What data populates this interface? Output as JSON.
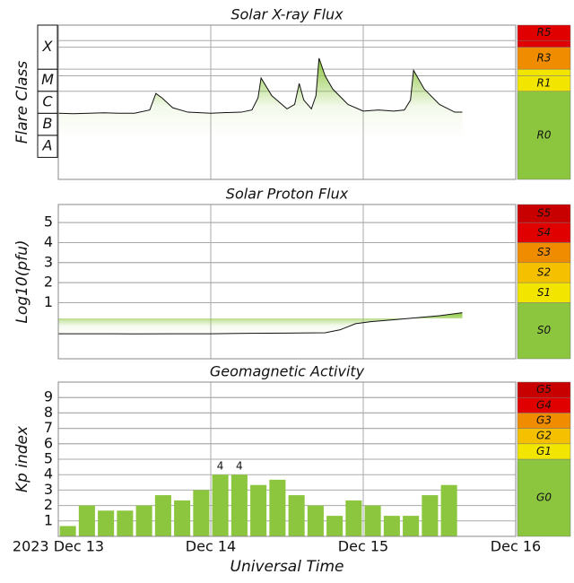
{
  "chart_data": [
    {
      "type": "line",
      "title": "Solar X-ray Flux",
      "ylabel": "Flare Class",
      "color": "#111111",
      "fill": "#8cc63f",
      "x": [
        0,
        0.1,
        0.2,
        0.3,
        0.4,
        0.5,
        0.6,
        0.64,
        0.68,
        0.75,
        0.85,
        1.0,
        1.1,
        1.2,
        1.27,
        1.31,
        1.33,
        1.4,
        1.5,
        1.55,
        1.58,
        1.61,
        1.66,
        1.69,
        1.71,
        1.75,
        1.8,
        1.9,
        2.0,
        2.1,
        2.2,
        2.27,
        2.31,
        2.33,
        2.4,
        2.5,
        2.6,
        2.65
      ],
      "values": [
        -6.0,
        -6.02,
        -6.0,
        -5.98,
        -6.0,
        -6.0,
        -5.85,
        -5.1,
        -5.3,
        -5.75,
        -5.95,
        -6.0,
        -5.97,
        -5.95,
        -5.85,
        -5.3,
        -4.4,
        -5.2,
        -5.8,
        -5.6,
        -4.65,
        -5.4,
        -5.8,
        -5.2,
        -3.5,
        -4.3,
        -4.9,
        -5.6,
        -5.9,
        -5.85,
        -5.9,
        -5.85,
        -5.4,
        -4.05,
        -4.9,
        -5.6,
        -5.95,
        -5.95
      ],
      "ylim": [
        -9,
        -2
      ],
      "yticks": [
        {
          "value": -8,
          "label": "A"
        },
        {
          "value": -7,
          "label": "B"
        },
        {
          "value": -6,
          "label": "C"
        },
        {
          "value": -5,
          "label": "M"
        },
        {
          "value": -4,
          "label": "X"
        }
      ],
      "scale": [
        {
          "label": "R0",
          "from": -9,
          "to": -5,
          "color": "#8cc63f"
        },
        {
          "label": "R1",
          "from": -5,
          "to": -4.3,
          "color": "#f2e600"
        },
        {
          "label": null,
          "from": -4.3,
          "to": -4,
          "color": "#f2e600"
        },
        {
          "label": "R3",
          "from": -4,
          "to": -3,
          "color": "#f08c00"
        },
        {
          "label": null,
          "from": -3,
          "to": -2.7,
          "color": "#e00000"
        },
        {
          "label": "R5",
          "from": -2.7,
          "to": -2,
          "color": "#e00000"
        }
      ]
    },
    {
      "type": "line",
      "title": "Solar Proton Flux",
      "ylabel": "Log10(pfu)",
      "color": "#111111",
      "fill": "#8cc63f",
      "x": [
        0,
        0.25,
        0.5,
        0.75,
        1.0,
        1.25,
        1.5,
        1.75,
        1.85,
        1.95,
        2.05,
        2.2,
        2.35,
        2.5,
        2.65
      ],
      "values": [
        -0.55,
        -0.55,
        -0.56,
        -0.55,
        -0.55,
        -0.53,
        -0.52,
        -0.5,
        -0.35,
        -0.05,
        0.05,
        0.15,
        0.25,
        0.35,
        0.5
      ],
      "ylim": [
        -1.8,
        5.9
      ],
      "yticks": [
        1,
        2,
        3,
        4,
        5
      ],
      "scale": [
        {
          "label": "S0",
          "from": -1.8,
          "to": 1,
          "color": "#8cc63f"
        },
        {
          "label": "S1",
          "from": 1,
          "to": 2,
          "color": "#f2e600"
        },
        {
          "label": "S2",
          "from": 2,
          "to": 3,
          "color": "#f5c000"
        },
        {
          "label": "S3",
          "from": 3,
          "to": 4,
          "color": "#f08c00"
        },
        {
          "label": "S4",
          "from": 4,
          "to": 5,
          "color": "#e00000"
        },
        {
          "label": "S5",
          "from": 5,
          "to": 5.9,
          "color": "#c80000"
        }
      ]
    },
    {
      "type": "bar",
      "title": "Geomagnetic Activity",
      "ylabel": "Kp index",
      "color": "#8cc63f",
      "x": [
        0.0625,
        0.1875,
        0.3125,
        0.4375,
        0.5625,
        0.6875,
        0.8125,
        0.9375,
        1.0625,
        1.1875,
        1.3125,
        1.4375,
        1.5625,
        1.6875,
        1.8125,
        1.9375,
        2.0625,
        2.1875,
        2.3125,
        2.4375,
        2.5625
      ],
      "values": [
        0.67,
        2.0,
        1.67,
        1.67,
        2.0,
        2.67,
        2.33,
        3.0,
        4.0,
        4.0,
        3.33,
        3.67,
        2.67,
        2.0,
        1.33,
        2.33,
        2.0,
        1.33,
        1.33,
        2.67,
        3.33
      ],
      "value_labels": [
        null,
        null,
        null,
        null,
        null,
        null,
        null,
        null,
        "4",
        "4",
        null,
        null,
        null,
        null,
        null,
        null,
        null,
        null,
        null,
        null,
        null
      ],
      "ylim": [
        0,
        10
      ],
      "yticks": [
        1,
        2,
        3,
        4,
        5,
        6,
        7,
        8,
        9
      ],
      "xlim": [
        0,
        3
      ],
      "xticks": [
        {
          "value": 0,
          "label": "2023 Dec 13"
        },
        {
          "value": 1,
          "label": "Dec 14"
        },
        {
          "value": 2,
          "label": "Dec 15"
        },
        {
          "value": 3,
          "label": "Dec 16"
        }
      ],
      "xlabel": "Universal Time",
      "scale": [
        {
          "label": "G0",
          "from": 0,
          "to": 5,
          "color": "#8cc63f"
        },
        {
          "label": "G1",
          "from": 5,
          "to": 6,
          "color": "#f2e600"
        },
        {
          "label": "G2",
          "from": 6,
          "to": 7,
          "color": "#f5c000"
        },
        {
          "label": "G3",
          "from": 7,
          "to": 8,
          "color": "#f08c00"
        },
        {
          "label": "G4",
          "from": 8,
          "to": 9,
          "color": "#e00000"
        },
        {
          "label": "G5",
          "from": 9,
          "to": 10,
          "color": "#c80000"
        }
      ]
    }
  ]
}
